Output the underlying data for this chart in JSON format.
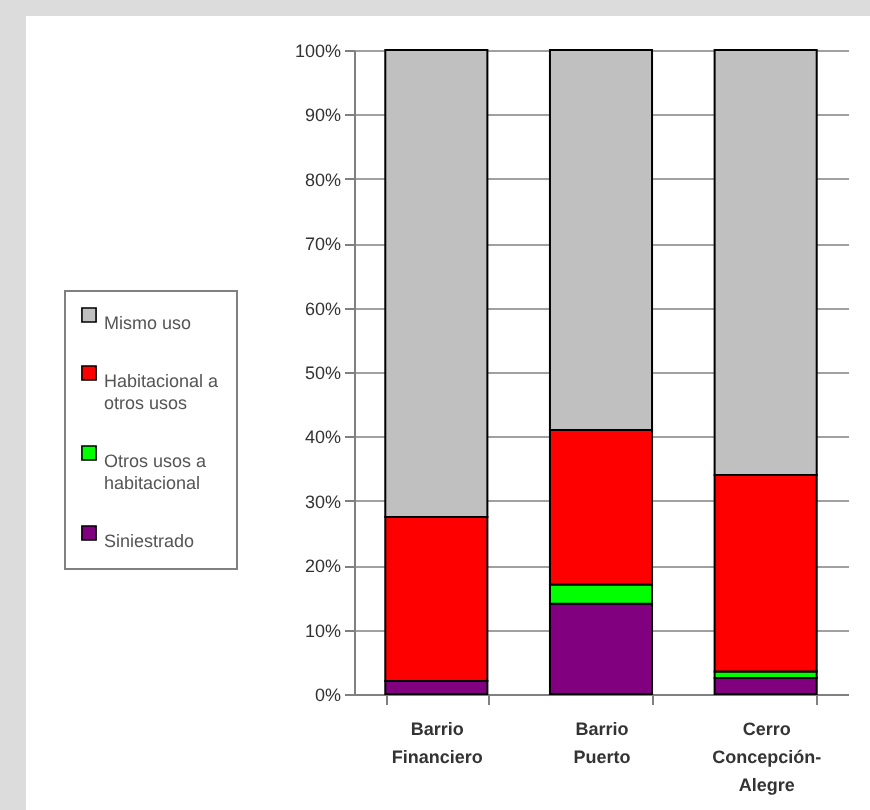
{
  "chart_data": {
    "type": "bar",
    "stacked": true,
    "categories": [
      "Barrio Financiero",
      "Barrio Puerto",
      "Cerro Concepción-Alegre"
    ],
    "series": [
      {
        "name": "Siniestrado",
        "color": "#800080",
        "values": [
          2,
          14,
          2.5
        ]
      },
      {
        "name": "Otros usos a habitacional",
        "color": "#00ff00",
        "values": [
          0,
          3,
          1
        ]
      },
      {
        "name": "Habitacional a otros usos",
        "color": "#ff0000",
        "values": [
          25.5,
          24,
          30.5
        ]
      },
      {
        "name": "Mismo uso",
        "color": "#c0c0c0",
        "values": [
          72.5,
          59,
          66
        ]
      }
    ],
    "ylim": [
      0,
      100
    ],
    "yticks": [
      {
        "value": 0,
        "label": "0%"
      },
      {
        "value": 10,
        "label": "10%"
      },
      {
        "value": 20,
        "label": "20%"
      },
      {
        "value": 30,
        "label": "30%"
      },
      {
        "value": 40,
        "label": "40%"
      },
      {
        "value": 50,
        "label": "50%"
      },
      {
        "value": 60,
        "label": "60%"
      },
      {
        "value": 70,
        "label": "70%"
      },
      {
        "value": 80,
        "label": "80%"
      },
      {
        "value": 90,
        "label": "90%"
      },
      {
        "value": 100,
        "label": "100%"
      }
    ],
    "grid": "y",
    "legend": "left"
  }
}
